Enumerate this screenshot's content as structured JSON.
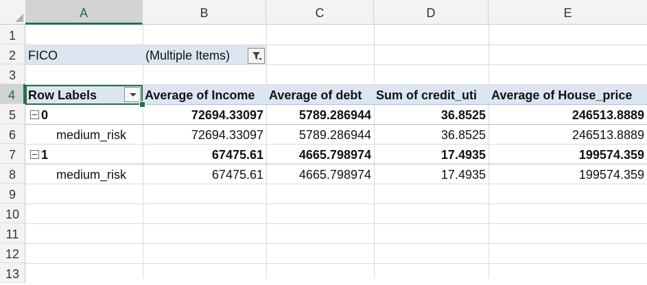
{
  "columns": [
    "A",
    "B",
    "C",
    "D",
    "E"
  ],
  "rows": [
    "1",
    "2",
    "3",
    "4",
    "5",
    "6",
    "7",
    "8",
    "9",
    "10",
    "11",
    "12",
    "13"
  ],
  "filter": {
    "field": "FICO",
    "value": "(Multiple Items)",
    "icon": "filter-dropdown-icon"
  },
  "pivot": {
    "row_labels_header": "Row Labels",
    "value_headers": [
      "Average of Income",
      "Average of debt",
      "Sum of credit_uti",
      "Average of House_price"
    ],
    "groups": [
      {
        "label": "0",
        "values": [
          "72694.33097",
          "5789.286944",
          "36.8525",
          "246513.8889"
        ],
        "children": [
          {
            "label": "medium_risk",
            "values": [
              "72694.33097",
              "5789.286944",
              "36.8525",
              "246513.8889"
            ]
          }
        ]
      },
      {
        "label": "1",
        "values": [
          "67475.61",
          "4665.798974",
          "17.4935",
          "199574.359"
        ],
        "children": [
          {
            "label": "medium_risk",
            "values": [
              "67475.61",
              "4665.798974",
              "17.4935",
              "199574.359"
            ]
          }
        ]
      }
    ]
  },
  "colors": {
    "selection": "#217346",
    "pivot_band": "#dce6f1",
    "header_bg": "#f3f3f3"
  }
}
